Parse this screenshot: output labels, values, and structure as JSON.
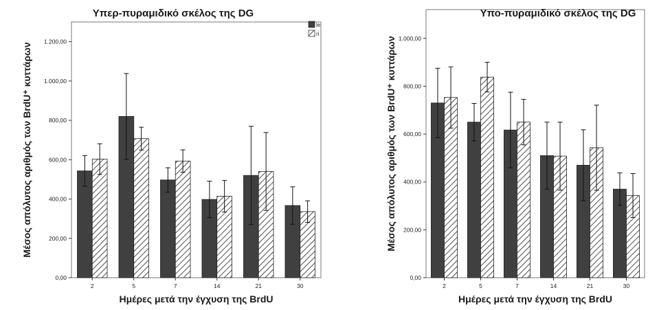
{
  "chart_data": [
    {
      "type": "bar",
      "title": "Υπερ-πυραμιδικό σκέλος της DG",
      "xlabel": "Ημέρες μετά την έγχυση της BrdU",
      "ylabel": "Μέσος απόλυτος αριθμός των BrdU⁺ κυττάρων",
      "ylim": [
        0,
        1300
      ],
      "yticks": [
        0,
        200,
        400,
        600,
        800,
        1000,
        1200
      ],
      "ytick_labels": [
        "0,00",
        "200,00",
        "400,00",
        "600,00",
        "800,00",
        "1.000,00",
        "1.200,00"
      ],
      "categories": [
        "2",
        "5",
        "7",
        "14",
        "21",
        "30"
      ],
      "legend": {
        "position": "top-right",
        "entries": [
          "le",
          "ri"
        ]
      },
      "series": [
        {
          "name": "le",
          "values": [
            543,
            820,
            497,
            398,
            520,
            367
          ],
          "err": [
            78,
            218,
            62,
            93,
            250,
            95
          ],
          "fill": "solid",
          "color": "#404040"
        },
        {
          "name": "ri",
          "values": [
            603,
            707,
            593,
            414,
            540,
            336
          ],
          "err": [
            78,
            58,
            57,
            80,
            198,
            55
          ],
          "fill": "hatch",
          "color": "#ffffff"
        }
      ]
    },
    {
      "type": "bar",
      "title": "Υπο-πυραμιδικό σκέλος της DG",
      "xlabel": "Ημέρες μετά την έγχυση της BrdU",
      "ylabel": "Μέσος απόλυτος αριθμός των BrdU⁺ κυττάρων",
      "ylim": [
        0,
        1120
      ],
      "yticks": [
        0,
        200,
        400,
        600,
        800,
        1000
      ],
      "ytick_labels": [
        "0,00",
        "200,00",
        "400,00",
        "600,00",
        "800,00",
        "1.000,00"
      ],
      "categories": [
        "2",
        "5",
        "7",
        "14",
        "21",
        "30"
      ],
      "series": [
        {
          "values": [
            730,
            650,
            617,
            510,
            470,
            370
          ],
          "err": [
            145,
            78,
            158,
            140,
            148,
            68
          ],
          "fill": "solid",
          "color": "#404040"
        },
        {
          "values": [
            753,
            838,
            650,
            508,
            543,
            343
          ],
          "err": [
            128,
            62,
            95,
            142,
            178,
            92
          ],
          "fill": "hatch",
          "color": "#ffffff"
        }
      ]
    }
  ]
}
